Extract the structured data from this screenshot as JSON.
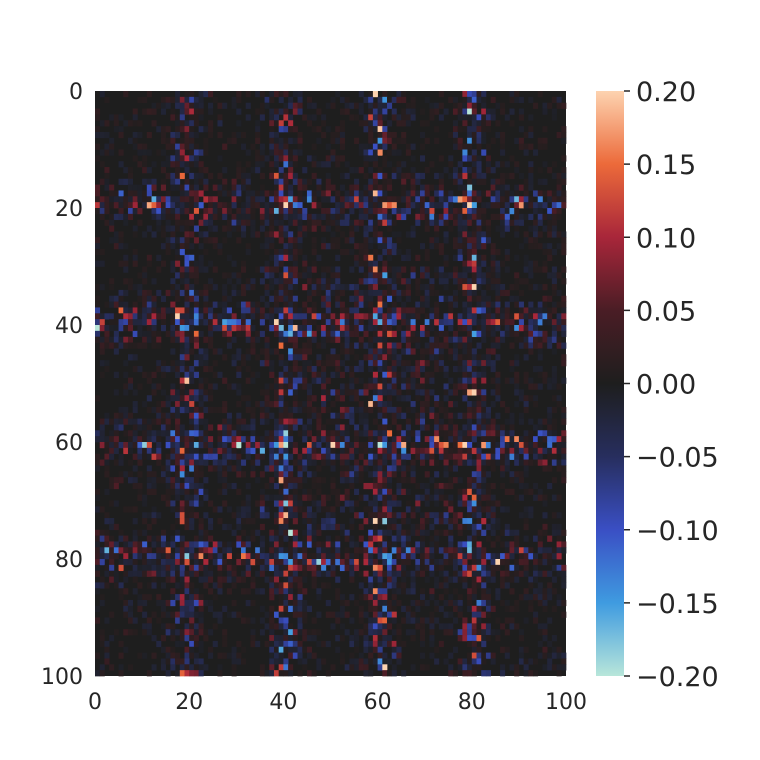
{
  "chart_data": {
    "type": "heatmap",
    "title": "",
    "xlabel": "",
    "ylabel": "",
    "rows": 100,
    "cols": 100,
    "xlim": [
      0,
      100
    ],
    "ylim": [
      100,
      0
    ],
    "x_ticks": [
      "0",
      "20",
      "40",
      "60",
      "80",
      "100"
    ],
    "y_ticks": [
      "0",
      "20",
      "40",
      "60",
      "80",
      "100"
    ],
    "colorbar": {
      "vmin": -0.2,
      "vmax": 0.2,
      "center": 0.0,
      "ticks": [
        "0.20",
        "0.15",
        "0.10",
        "0.05",
        "0.00",
        "−0.05",
        "−0.10",
        "−0.15",
        "−0.20"
      ],
      "colors": [
        "#b8e6da",
        "#3f9be0",
        "#3a4fc4",
        "#272e5e",
        "#1e1e1e",
        "#4a1d25",
        "#a8263a",
        "#ec6a3a",
        "#fdd3b0"
      ]
    },
    "structure": {
      "row_bands": [
        19,
        39,
        60,
        79
      ],
      "col_bands": [
        19,
        40,
        60,
        80
      ],
      "band_halfwidth": 2,
      "band_amplitude": 0.11,
      "intersection_amplitude": 0.18,
      "background_amplitude": 0.02,
      "central_region": {
        "rows": [
          30,
          75
        ],
        "cols": [
          35,
          75
        ],
        "amplitude": 0.05
      }
    }
  }
}
